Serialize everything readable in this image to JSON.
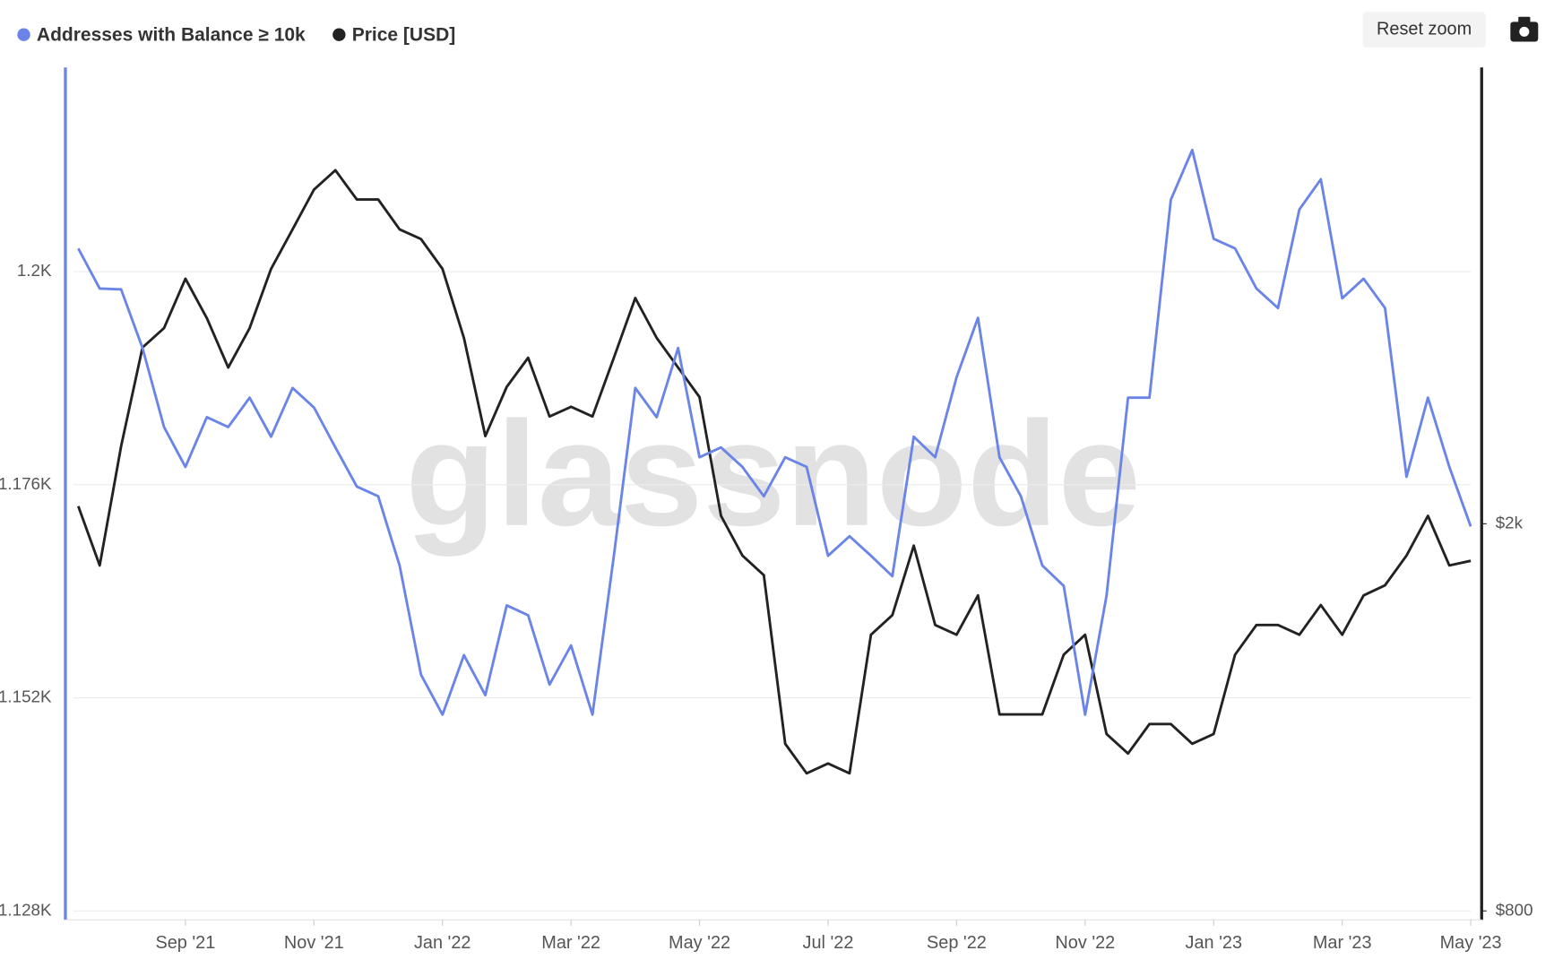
{
  "chart_data": {
    "type": "line",
    "watermark": "glassnode",
    "reset_button": "Reset zoom",
    "categories": [
      null,
      null,
      null,
      null,
      null,
      "Sep '21",
      null,
      null,
      null,
      null,
      null,
      "Nov '21",
      null,
      null,
      null,
      null,
      null,
      "Jan '22",
      null,
      null,
      null,
      null,
      null,
      "Mar '22",
      null,
      null,
      null,
      null,
      null,
      "May '22",
      null,
      null,
      null,
      null,
      null,
      "Jul '22",
      null,
      null,
      null,
      null,
      null,
      "Sep '22",
      null,
      null,
      null,
      null,
      null,
      "Nov '22",
      null,
      null,
      null,
      null,
      null,
      "Jan '23",
      null,
      null,
      null,
      null,
      null,
      "Mar '23",
      null,
      null,
      null,
      null,
      null,
      "May '23"
    ],
    "series": [
      {
        "name": "Addresses with Balance ≥ 10k",
        "color": "#6a84e8",
        "axis": "y",
        "values": [
          1202.6,
          1198.1,
          1198,
          1191.4,
          1182.5,
          1178,
          1183.6,
          1182.5,
          1185.8,
          1181.4,
          1186.9,
          1184.7,
          1180.2,
          1175.8,
          1174.7,
          1166.9,
          1154.6,
          1150.1,
          1156.8,
          1152.3,
          1162.4,
          1161.3,
          1153.5,
          1157.9,
          1150.1,
          1168,
          1186.9,
          1183.6,
          1191.4,
          1179.1,
          1180.2,
          1178,
          1174.7,
          1179.1,
          1178,
          1168,
          1170.2,
          1168,
          1165.7,
          1181.4,
          1179.1,
          1188.1,
          1194.8,
          1179.1,
          1174.7,
          1166.9,
          1164.6,
          1150.1,
          1163.5,
          1185.8,
          1185.8,
          1208.1,
          1213.7,
          1203.7,
          1202.6,
          1198.1,
          1195.9,
          1207,
          1210.4,
          1197,
          1199.2,
          1195.9,
          1176.9,
          1185.8,
          1178,
          1171.3
        ]
      },
      {
        "name": "Price [USD]",
        "color": "#222222",
        "axis": "y2",
        "values": [
          2085,
          1812,
          2403,
          3035,
          3178,
          3572,
          3254,
          2895,
          3178,
          3656,
          4015,
          4411,
          4618,
          4309,
          4309,
          4015,
          3923,
          3656,
          3105,
          2461,
          2765,
          2963,
          2578,
          2638,
          2578,
          2963,
          3412,
          3105,
          2895,
          2699,
          2038,
          1855,
          1771,
          1188,
          1108,
          1134,
          1108,
          1538,
          1611,
          1899,
          1574,
          1538,
          1688,
          1274,
          1274,
          1274,
          1467,
          1538,
          1216,
          1161,
          1245,
          1245,
          1188,
          1216,
          1467,
          1574,
          1574,
          1538,
          1650,
          1538,
          1688,
          1729,
          1855,
          2038,
          1812,
          1832
        ]
      }
    ],
    "ylim": [
      1128,
      1223
    ],
    "yticks": [
      {
        "value": 1128,
        "label": "1.128K"
      },
      {
        "value": 1152,
        "label": "1.152K"
      },
      {
        "value": 1176,
        "label": "1.176K"
      },
      {
        "value": 1200,
        "label": "1.2K"
      }
    ],
    "y2lim": [
      800,
      5890
    ],
    "y2scale": "log",
    "y2ticks": [
      {
        "value": 800,
        "label": "$800"
      },
      {
        "value": 2000,
        "label": "$2k"
      }
    ],
    "grid": true
  }
}
